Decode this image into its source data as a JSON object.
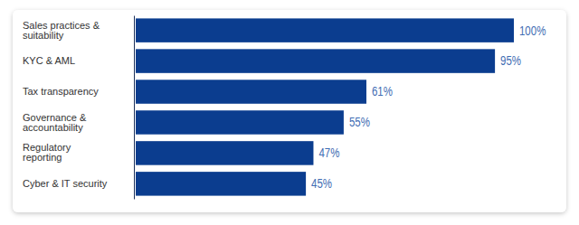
{
  "chart_data": {
    "type": "bar",
    "orientation": "horizontal",
    "categories": [
      "Sales practices & suitability",
      "KYC & AML",
      "Tax transparency",
      "Governance & accountability",
      "Regulatory reporting",
      "Cyber & IT security"
    ],
    "values": [
      100,
      95,
      61,
      55,
      47,
      45
    ],
    "value_labels": [
      "100%",
      "95%",
      "61%",
      "55%",
      "47%",
      "45%"
    ],
    "color": "#0b3d8f",
    "data_labels": true,
    "tick_labels": "y"
  }
}
